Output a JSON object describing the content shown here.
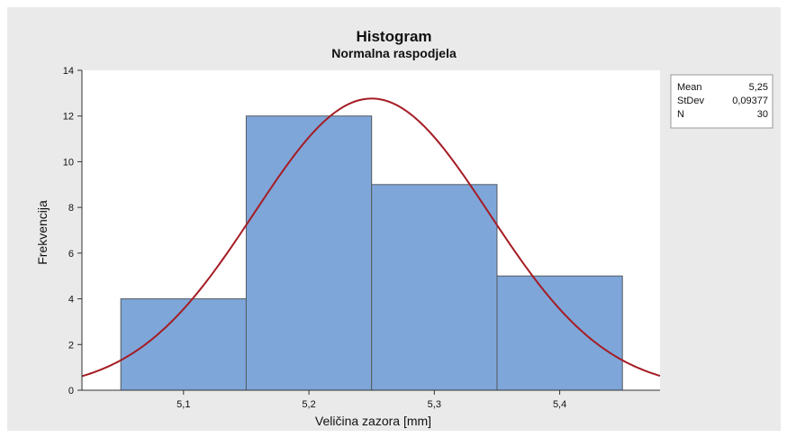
{
  "chart_data": {
    "type": "bar",
    "title": "Histogram",
    "subtitle": "Normalna raspodjela",
    "xlabel": "Veličina zazora [mm]",
    "ylabel": "Frekvencija",
    "bins": [
      {
        "start": 5.05,
        "end": 5.15,
        "count": 4
      },
      {
        "start": 5.15,
        "end": 5.25,
        "count": 12
      },
      {
        "start": 5.25,
        "end": 5.35,
        "count": 9
      },
      {
        "start": 5.35,
        "end": 5.45,
        "count": 5
      }
    ],
    "xlim": [
      5.019,
      5.48
    ],
    "ylim": [
      0,
      14
    ],
    "x_ticks": [
      {
        "value": 5.1,
        "label": "5,1"
      },
      {
        "value": 5.2,
        "label": "5,2"
      },
      {
        "value": 5.3,
        "label": "5,3"
      },
      {
        "value": 5.4,
        "label": "5,4"
      }
    ],
    "y_ticks": [
      {
        "value": 0,
        "label": "0"
      },
      {
        "value": 2,
        "label": "2"
      },
      {
        "value": 4,
        "label": "4"
      },
      {
        "value": 6,
        "label": "6"
      },
      {
        "value": 8,
        "label": "8"
      },
      {
        "value": 10,
        "label": "10"
      },
      {
        "value": 12,
        "label": "12"
      },
      {
        "value": 14,
        "label": "14"
      }
    ],
    "normal_fit": {
      "mean": 5.25,
      "stdev": 0.09377,
      "n": 30,
      "bin_width": 0.1
    },
    "legend": {
      "placement": "top-right",
      "rows": [
        {
          "label": "Mean",
          "value": "5,25"
        },
        {
          "label": "StDev",
          "value": "0,09377"
        },
        {
          "label": "N",
          "value": "30"
        }
      ]
    },
    "grid": false,
    "colors": {
      "bar_fill": "#7ea6d9",
      "bar_stroke": "#555a60",
      "curve": "#a51c24",
      "figure_background": "#eaeaea",
      "plot_background": "#ffffff"
    }
  }
}
